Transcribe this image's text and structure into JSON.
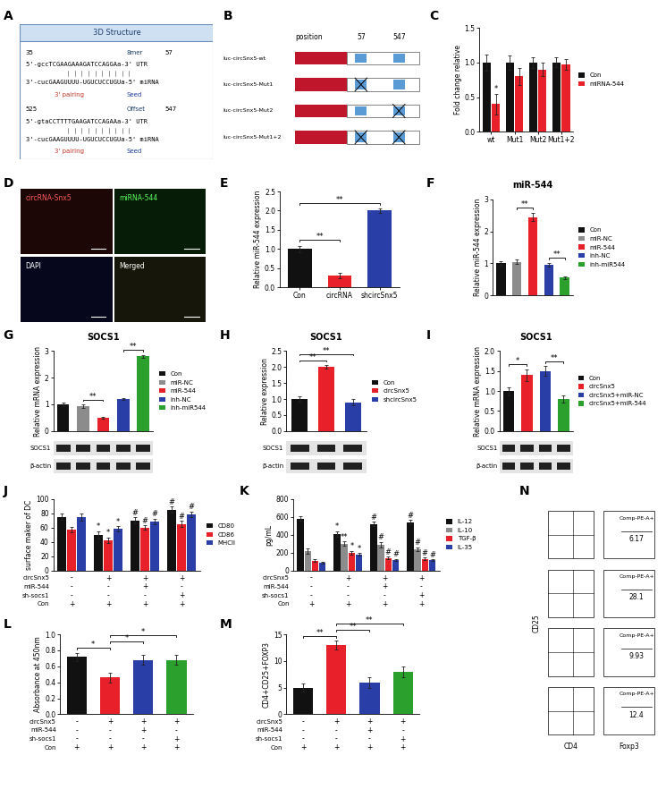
{
  "diagrams": [
    {
      "label": "A",
      "type": "sequence_alignment",
      "title": "3D Structure",
      "sites": [
        {
          "start": 35,
          "site_type": "8mer",
          "end": 57,
          "utr": "5'-gccTCGAAGAAAGATCCAGGAa-3' UTR",
          "mirna": "3'-cucGAAGUUUU-UGUCUCCUGUa-5' miRNA",
          "annotations": [
            "3' pairing",
            "Seed"
          ]
        },
        {
          "start": 525,
          "site_type": "Offset",
          "end": 547,
          "utr": "5'-gtaCCTTTTGAAGATCCAGAAa-3' UTR",
          "mirna": "3'-cucGAAGUUUU-UGUCUCCUGUa-5' miRNA",
          "annotations": [
            "3' pairing",
            "Seed"
          ]
        }
      ]
    },
    {
      "label": "B",
      "type": "constructs",
      "header": "position",
      "sites": [
        57,
        547
      ],
      "constructs": [
        {
          "name": "luc-circSnx5-wt",
          "mutated": []
        },
        {
          "name": "luc-circSnx5-Mut1",
          "mutated": [
            0
          ]
        },
        {
          "name": "luc-circSnx5-Mut2",
          "mutated": [
            1
          ]
        },
        {
          "name": "luc-circSnx5-Mut1+2",
          "mutated": [
            0,
            1
          ]
        }
      ]
    },
    {
      "label": "D",
      "type": "image_grid",
      "panels": [
        "circRNA-Snx5",
        "miRNA-544",
        "DAPI",
        "Merged"
      ]
    },
    {
      "label": "N",
      "type": "flow_cytometry",
      "x_label": "CD4",
      "y_label": "CD25",
      "hist_label": "Foxp3",
      "gate": "Comp-PE-A+",
      "percentages": [
        6.17,
        28.1,
        9.93,
        12.4
      ]
    }
  ],
  "chart_data": [
    {
      "label": "C",
      "type": "bar",
      "categories": [
        "wt",
        "Mut1",
        "Mut2",
        "Mut1+2"
      ],
      "ylabel": "Fold change relative",
      "ylim": [
        0,
        1.5
      ],
      "yticks": [
        {
          "value": 0,
          "label": "0.0"
        },
        {
          "value": 0.5,
          "label": "0.5"
        },
        {
          "value": 1.0,
          "label": "1.0"
        },
        {
          "value": 1.5,
          "label": "1.5"
        }
      ],
      "legend": "right",
      "series": [
        {
          "name": "Con",
          "color": "#111111",
          "values": [
            1.0,
            1.0,
            1.0,
            1.0
          ],
          "errors": [
            0.12,
            0.1,
            0.08,
            0.07
          ]
        },
        {
          "name": "miRNA-544",
          "color": "#e8202a",
          "values": [
            0.4,
            0.8,
            0.9,
            0.97
          ],
          "errors": [
            0.15,
            0.12,
            0.1,
            0.08
          ],
          "marks": [
            "*",
            null,
            null,
            null
          ]
        }
      ]
    },
    {
      "label": "E",
      "type": "bar",
      "categories": [
        "Con",
        "circRNA",
        "shcircSnx5"
      ],
      "values": [
        1.0,
        0.3,
        2.0
      ],
      "errors": [
        0.08,
        0.07,
        0.05
      ],
      "colors": [
        "#111111",
        "#e8202a",
        "#2a3ea8"
      ],
      "ylabel": "Relative miR-544 expression",
      "ylim": [
        0,
        2.5
      ],
      "yticks": [
        {
          "value": 0,
          "label": "0.0"
        },
        {
          "value": 0.5,
          "label": "0.5"
        },
        {
          "value": 1.0,
          "label": "1.0"
        },
        {
          "value": 1.5,
          "label": "1.5"
        },
        {
          "value": 2.0,
          "label": "2.0"
        },
        {
          "value": 2.5,
          "label": "2.5"
        }
      ],
      "comparisons": [
        {
          "from": 0,
          "to": 1,
          "text": "**"
        },
        {
          "from": 0,
          "to": 2,
          "text": "**"
        }
      ]
    },
    {
      "label": "F",
      "type": "bar",
      "title": "miR-544",
      "categories": [
        "Con",
        "miR-NC",
        "miR-544",
        "inh-NC",
        "inh-miR544"
      ],
      "values": [
        1.0,
        1.05,
        2.45,
        0.95,
        0.55
      ],
      "errors": [
        0.06,
        0.08,
        0.12,
        0.05,
        0.05
      ],
      "colors": [
        "#111111",
        "#8c8c8c",
        "#e8202a",
        "#2a3ea8",
        "#2ca02c"
      ],
      "ylabel": "Relative miR-544 expression",
      "ylim": [
        0,
        3
      ],
      "yticks": [
        0,
        1,
        2,
        3
      ],
      "tick_labels": "y",
      "legend": "right",
      "comparisons": [
        {
          "from": 1,
          "to": 2,
          "text": "**"
        },
        {
          "from": 3,
          "to": 4,
          "text": "**"
        }
      ]
    },
    {
      "label": "G",
      "type": "bar",
      "title": "SOCS1",
      "categories": [
        "Con",
        "miR-NC",
        "miR-544",
        "inh-NC",
        "inh-miR544"
      ],
      "values": [
        1.0,
        0.92,
        0.5,
        1.2,
        2.8
      ],
      "errors": [
        0.06,
        0.07,
        0.04,
        0.05,
        0.06
      ],
      "colors": [
        "#111111",
        "#8c8c8c",
        "#e8202a",
        "#2a3ea8",
        "#2ca02c"
      ],
      "ylabel": "Relative mRNA expression",
      "ylim": [
        0,
        3
      ],
      "yticks": [
        0,
        1,
        2,
        3
      ],
      "tick_labels": "y",
      "legend": "right",
      "comparisons": [
        {
          "from": 1,
          "to": 2,
          "text": "**"
        },
        {
          "from": 3,
          "to": 4,
          "text": "**"
        }
      ],
      "blot": [
        "SOCS1",
        "β-actin"
      ]
    },
    {
      "label": "H",
      "type": "bar",
      "title": "SOCS1",
      "categories": [
        "Con",
        "circSnx5",
        "shcircSnx5"
      ],
      "values": [
        1.0,
        2.0,
        0.9
      ],
      "errors": [
        0.08,
        0.06,
        0.1
      ],
      "colors": [
        "#111111",
        "#e8202a",
        "#2a3ea8"
      ],
      "ylabel": "Relative expression",
      "ylim": [
        0,
        2.5
      ],
      "yticks": [
        {
          "value": 0,
          "label": "0.0"
        },
        {
          "value": 0.5,
          "label": "0.5"
        },
        {
          "value": 1.0,
          "label": "1.0"
        },
        {
          "value": 1.5,
          "label": "1.5"
        },
        {
          "value": 2.0,
          "label": "2.0"
        },
        {
          "value": 2.5,
          "label": "2.5"
        }
      ],
      "tick_labels": "y",
      "legend": "right",
      "comparisons": [
        {
          "from": 0,
          "to": 1,
          "text": "**"
        },
        {
          "from": 0,
          "to": 2,
          "text": "**"
        }
      ],
      "blot": [
        "SOCS1",
        "β-actin"
      ]
    },
    {
      "label": "I",
      "type": "bar",
      "title": "SOCS1",
      "categories": [
        "Con",
        "circSnx5",
        "circSnx5+miR-NC",
        "circSnx5+miR-544"
      ],
      "values": [
        1.0,
        1.4,
        1.5,
        0.8
      ],
      "errors": [
        0.1,
        0.15,
        0.12,
        0.1
      ],
      "colors": [
        "#111111",
        "#e8202a",
        "#2a3ea8",
        "#2ca02c"
      ],
      "ylabel": "Relative mRNA expression",
      "ylim": [
        0,
        2
      ],
      "yticks": [
        {
          "value": 0,
          "label": "0.0"
        },
        {
          "value": 0.5,
          "label": "0.5"
        },
        {
          "value": 1.0,
          "label": "1.0"
        },
        {
          "value": 1.5,
          "label": "1.5"
        },
        {
          "value": 2.0,
          "label": "2.0"
        }
      ],
      "tick_labels": "y",
      "legend": "right",
      "comparisons": [
        {
          "from": 0,
          "to": 1,
          "text": "*"
        },
        {
          "from": 2,
          "to": 3,
          "text": "**"
        }
      ],
      "blot": [
        "SOCS1",
        "β-actin"
      ]
    },
    {
      "label": "J",
      "type": "bar",
      "categories": [
        null,
        null,
        null,
        null
      ],
      "ylabel": "surface maker of DC",
      "ylim": [
        0,
        100
      ],
      "yticks": [
        0,
        20,
        40,
        60,
        80,
        100
      ],
      "tick_labels": "y",
      "legend": "right",
      "series": [
        {
          "name": "CD80",
          "color": "#111111",
          "values": [
            75,
            50,
            70,
            85
          ],
          "errors": [
            4,
            5,
            4,
            4
          ],
          "marks": [
            null,
            "*",
            "#",
            "#"
          ]
        },
        {
          "name": "CD86",
          "color": "#e8202a",
          "values": [
            57,
            42,
            60,
            65
          ],
          "errors": [
            4,
            4,
            3,
            4
          ],
          "marks": [
            null,
            "*",
            "#",
            "#"
          ]
        },
        {
          "name": "MHCII",
          "color": "#2a3ea8",
          "values": [
            75,
            58,
            68,
            78
          ],
          "errors": [
            5,
            4,
            4,
            4
          ],
          "marks": [
            null,
            "*",
            "#",
            "#"
          ]
        }
      ],
      "conditions": [
        {
          "name": "circSnx5",
          "values": [
            "-",
            "+",
            "+",
            "+"
          ]
        },
        {
          "name": "miR-544",
          "values": [
            "-",
            "-",
            "+",
            "-"
          ]
        },
        {
          "name": "sh-socs1",
          "values": [
            "-",
            "-",
            "-",
            "+"
          ]
        },
        {
          "name": "Con",
          "values": [
            "+",
            "+",
            "+",
            "+"
          ]
        }
      ]
    },
    {
      "label": "K",
      "type": "bar",
      "categories": [
        null,
        null,
        null,
        null
      ],
      "ylabel": "pg/mL",
      "ylim": [
        0,
        800
      ],
      "yticks": [
        0,
        200,
        400,
        600,
        800
      ],
      "tick_labels": "y",
      "legend": "right",
      "series": [
        {
          "name": "IL-12",
          "color": "#111111",
          "values": [
            580,
            410,
            520,
            540
          ],
          "errors": [
            25,
            30,
            25,
            25
          ],
          "marks": [
            null,
            "*",
            "#",
            "#"
          ]
        },
        {
          "name": "IL-10",
          "color": "#8c8c8c",
          "values": [
            220,
            300,
            290,
            240
          ],
          "errors": [
            30,
            25,
            30,
            20
          ],
          "marks": [
            null,
            "**",
            "#",
            "#"
          ]
        },
        {
          "name": "TGF-β",
          "color": "#e8202a",
          "values": [
            110,
            200,
            140,
            130
          ],
          "errors": [
            15,
            20,
            15,
            15
          ],
          "marks": [
            null,
            "*",
            "#",
            "#"
          ]
        },
        {
          "name": "IL-35",
          "color": "#2a3ea8",
          "values": [
            90,
            180,
            120,
            115
          ],
          "errors": [
            10,
            15,
            12,
            10
          ],
          "marks": [
            null,
            "*",
            "#",
            "#"
          ]
        }
      ],
      "conditions": [
        {
          "name": "circSnx5",
          "values": [
            "-",
            "+",
            "+",
            "+"
          ]
        },
        {
          "name": "miR-544",
          "values": [
            "-",
            "-",
            "+",
            "-"
          ]
        },
        {
          "name": "sh-socs1",
          "values": [
            "-",
            "-",
            "-",
            "+"
          ]
        },
        {
          "name": "Con",
          "values": [
            "+",
            "+",
            "+",
            "+"
          ]
        }
      ]
    },
    {
      "label": "L",
      "type": "bar",
      "categories": [
        null,
        null,
        null,
        null
      ],
      "values": [
        0.72,
        0.46,
        0.68,
        0.68
      ],
      "errors": [
        0.05,
        0.06,
        0.06,
        0.06
      ],
      "colors": [
        "#111111",
        "#e8202a",
        "#2a3ea8",
        "#2ca02c"
      ],
      "ylabel": "Absorbance at 450nm",
      "ylim": [
        0,
        1.0
      ],
      "yticks": [
        {
          "value": 0,
          "label": "0.0"
        },
        {
          "value": 0.2,
          "label": "0.2"
        },
        {
          "value": 0.4,
          "label": "0.4"
        },
        {
          "value": 0.6,
          "label": "0.6"
        },
        {
          "value": 0.8,
          "label": "0.8"
        },
        {
          "value": 1.0,
          "label": "1.0"
        }
      ],
      "tick_labels": "y",
      "comparisons": [
        {
          "from": 0,
          "to": 1,
          "text": "*"
        },
        {
          "from": 1,
          "to": 2,
          "text": "*"
        },
        {
          "from": 1,
          "to": 3,
          "text": "*"
        }
      ],
      "conditions": [
        {
          "name": "circSnx5",
          "values": [
            "-",
            "+",
            "+",
            "+"
          ]
        },
        {
          "name": "miR-544",
          "values": [
            "-",
            "-",
            "+",
            "-"
          ]
        },
        {
          "name": "sh-socs1",
          "values": [
            "-",
            "-",
            "-",
            "+"
          ]
        },
        {
          "name": "Con",
          "values": [
            "+",
            "+",
            "+",
            "+"
          ]
        }
      ]
    },
    {
      "label": "M",
      "type": "bar",
      "categories": [
        null,
        null,
        null,
        null
      ],
      "values": [
        5,
        13,
        6,
        8
      ],
      "errors": [
        0.8,
        0.8,
        1.0,
        1.0
      ],
      "colors": [
        "#111111",
        "#e8202a",
        "#2a3ea8",
        "#2ca02c"
      ],
      "ylabel": "CD4+CD25+FOXP3",
      "ylim": [
        0,
        15
      ],
      "yticks": [
        0,
        5,
        10,
        15
      ],
      "tick_labels": "y",
      "comparisons": [
        {
          "from": 0,
          "to": 1,
          "text": "**"
        },
        {
          "from": 1,
          "to": 2,
          "text": "**"
        },
        {
          "from": 1,
          "to": 3,
          "text": "**"
        }
      ],
      "conditions": [
        {
          "name": "circSnx5",
          "values": [
            "-",
            "+",
            "+",
            "+"
          ]
        },
        {
          "name": "miR-544",
          "values": [
            "-",
            "-",
            "+",
            "-"
          ]
        },
        {
          "name": "sh-socs1",
          "values": [
            "-",
            "-",
            "-",
            "+"
          ]
        },
        {
          "name": "Con",
          "values": [
            "+",
            "+",
            "+",
            "+"
          ]
        }
      ]
    }
  ]
}
